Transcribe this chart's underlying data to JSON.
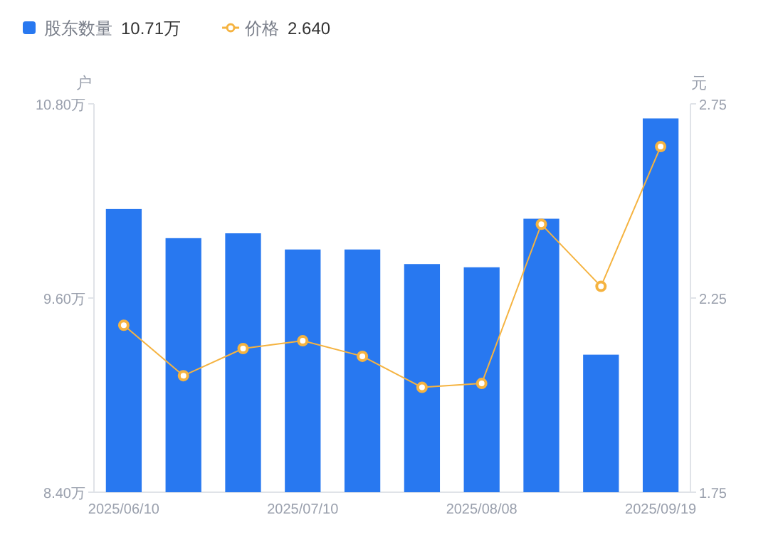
{
  "chart_data": {
    "type": "bar",
    "categories": [
      "2025/06/10",
      null,
      null,
      "2025/07/10",
      null,
      null,
      "2025/08/08",
      null,
      null,
      "2025/09/19"
    ],
    "series": [
      {
        "name": "股东数量",
        "color": "#2878f0",
        "values": [
          10.15,
          9.97,
          10.0,
          9.9,
          9.9,
          9.81,
          9.79,
          10.09,
          9.25,
          10.71
        ]
      },
      {
        "name": "价格",
        "type": "line",
        "axis": "y2",
        "color": "#f5b340",
        "values": [
          2.18,
          2.05,
          2.12,
          2.14,
          2.1,
          2.02,
          2.03,
          2.44,
          2.28,
          2.64
        ]
      }
    ],
    "ylabel": "户",
    "y2label": "元",
    "ylim": [
      8.4,
      10.8
    ],
    "yticks": [
      {
        "value": 8.4,
        "label": "8.40万"
      },
      {
        "value": 9.6,
        "label": "9.60万"
      },
      {
        "value": 10.8,
        "label": "10.80万"
      }
    ],
    "y2lim": [
      1.75,
      2.75
    ],
    "y2ticks": [
      1.75,
      2.25,
      2.75
    ],
    "marker": "circle",
    "legend": "top left",
    "annotations": [
      "10.71万",
      "2.640"
    ]
  }
}
